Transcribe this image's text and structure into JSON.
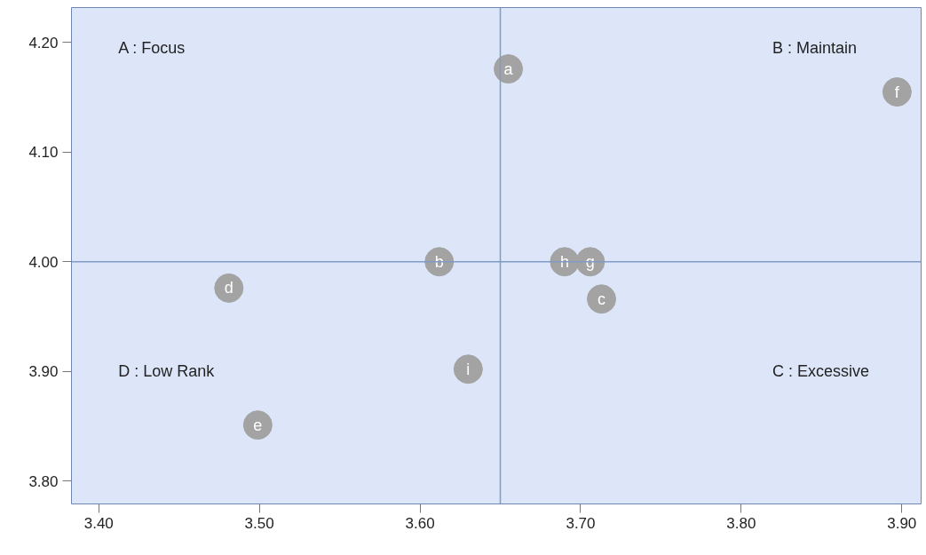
{
  "chart_data": {
    "type": "scatter",
    "x": [
      3.655,
      3.612,
      3.713,
      3.481,
      3.499,
      3.897,
      3.706,
      3.69,
      3.63
    ],
    "values": [
      4.176,
      4.0,
      3.966,
      3.976,
      3.851,
      4.155,
      4.0,
      4.0,
      3.902
    ],
    "value_labels": [
      "a",
      "b",
      "c",
      "d",
      "e",
      "f",
      "g",
      "h",
      "i"
    ],
    "color": "#a3a3a3",
    "marker": "circle",
    "xlim": [
      3.383,
      3.912
    ],
    "ylim": [
      3.779,
      4.232
    ],
    "xticks": [
      {
        "value": 3.4,
        "label": "3.40"
      },
      {
        "value": 3.5,
        "label": "3.50"
      },
      {
        "value": 3.6,
        "label": "3.60"
      },
      {
        "value": 3.7,
        "label": "3.70"
      },
      {
        "value": 3.8,
        "label": "3.80"
      },
      {
        "value": 3.9,
        "label": "3.90"
      }
    ],
    "yticks": [
      {
        "value": 3.8,
        "label": "3.80"
      },
      {
        "value": 3.9,
        "label": "3.90"
      },
      {
        "value": 4.0,
        "label": "4.00"
      },
      {
        "value": 4.1,
        "label": "4.10"
      },
      {
        "value": 4.2,
        "label": "4.20"
      }
    ],
    "ref_lines": [
      {
        "axis": "x",
        "value": 3.65,
        "color": "#7f9bc6"
      },
      {
        "axis": "y",
        "value": 4.0,
        "color": "#7f9bc6"
      }
    ],
    "annotations": [
      "A : Focus",
      "B : Maintain",
      "C : Excessive",
      "D : Low Rank"
    ],
    "grid": false
  }
}
